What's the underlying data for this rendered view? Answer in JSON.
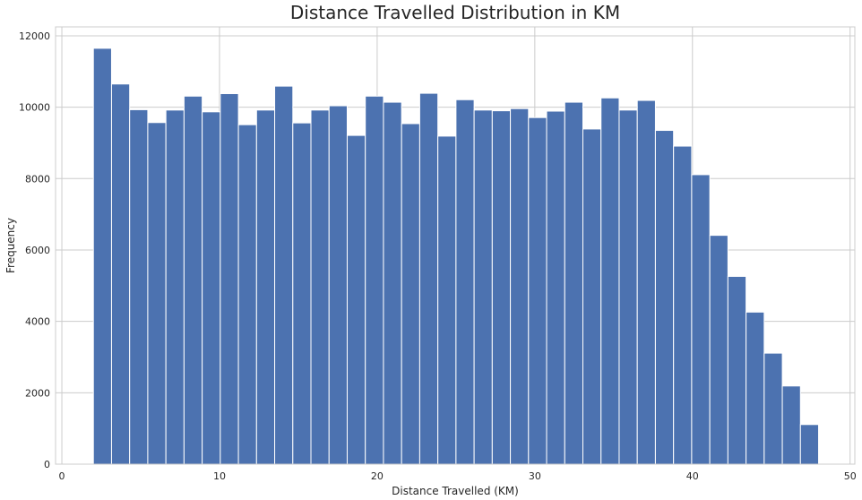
{
  "chart_data": {
    "type": "bar",
    "title": "Distance Travelled Distribution in KM",
    "xlabel": "Distance Travelled (KM)",
    "ylabel": "Frequency",
    "xlim": [
      -0.4,
      50.3
    ],
    "ylim": [
      0,
      12250
    ],
    "xticks": [
      0,
      10,
      20,
      30,
      40,
      50
    ],
    "yticks": [
      0,
      2000,
      4000,
      6000,
      8000,
      10000,
      12000
    ],
    "grid": true,
    "bar_color": "#4c72b0",
    "bins": {
      "start": 2.0,
      "width": 1.15,
      "values": [
        11650,
        10650,
        9930,
        9570,
        9920,
        10310,
        9870,
        10380,
        9510,
        9920,
        10590,
        9560,
        9920,
        10040,
        9210,
        10310,
        10140,
        9540,
        10390,
        9190,
        10210,
        9920,
        9900,
        9960,
        9710,
        9890,
        10140,
        9390,
        10260,
        9920,
        10190,
        9350,
        8910,
        8110,
        6410,
        5260,
        4260,
        3110,
        2190,
        1110
      ]
    }
  }
}
